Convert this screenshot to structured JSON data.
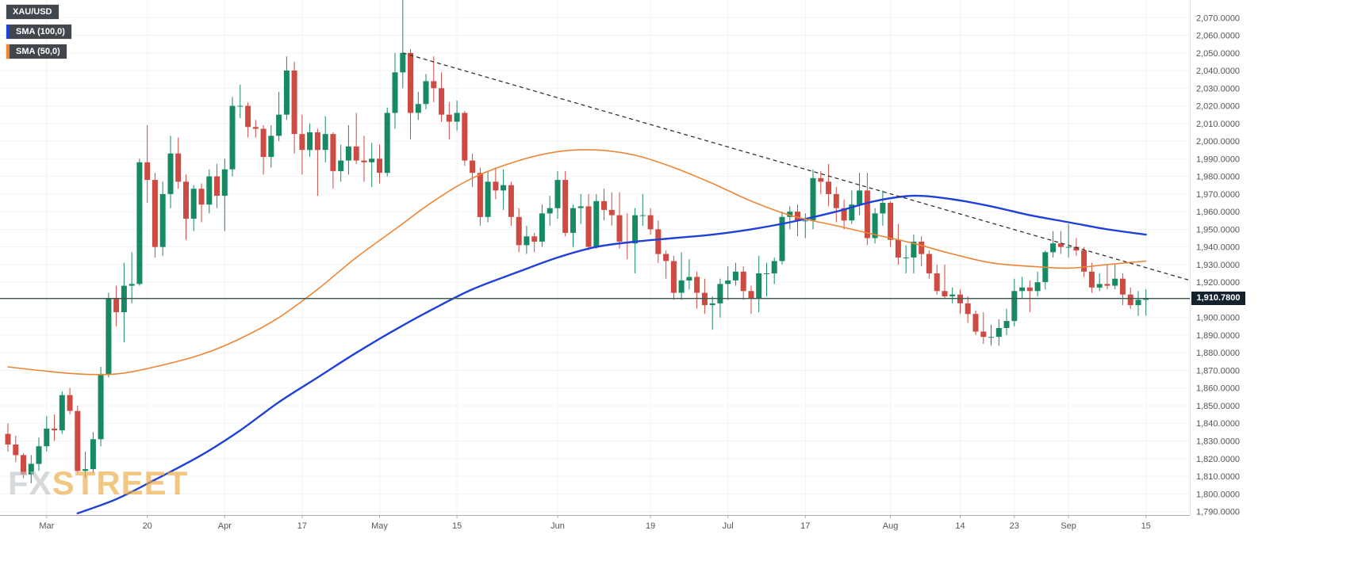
{
  "legend": {
    "symbol_label": "XAU/USD",
    "indicators": [
      {
        "label": "SMA (100,0)",
        "color": "#2041d9"
      },
      {
        "label": "SMA (50,0)",
        "color": "#ee8535"
      }
    ]
  },
  "watermark": {
    "part1": "FX",
    "part2": "STREET"
  },
  "last_price": {
    "value": 1910.78,
    "label": "1,910.7800"
  },
  "price_axis": {
    "top_value": 2070,
    "step": 10,
    "labels": [
      "2,070.0000",
      "2,060.0000",
      "2,050.0000",
      "2,040.0000",
      "2,030.0000",
      "2,020.0000",
      "2,010.0000",
      "2,000.0000",
      "1,990.0000",
      "1,980.0000",
      "1,970.0000",
      "1,960.0000",
      "1,950.0000",
      "1,940.0000",
      "1,930.0000",
      "1,920.0000",
      "1,910.0000",
      "1,900.0000",
      "1,890.0000",
      "1,880.0000",
      "1,870.0000",
      "1,860.0000",
      "1,850.0000",
      "1,840.0000",
      "1,830.0000",
      "1,820.0000",
      "1,810.0000",
      "1,800.0000",
      "1,790.0000"
    ]
  },
  "time_axis": {
    "labels": [
      {
        "text": "Mar",
        "i": 5
      },
      {
        "text": "20",
        "i": 18
      },
      {
        "text": "Apr",
        "i": 28
      },
      {
        "text": "17",
        "i": 38
      },
      {
        "text": "May",
        "i": 48
      },
      {
        "text": "15",
        "i": 58
      },
      {
        "text": "Jun",
        "i": 71
      },
      {
        "text": "19",
        "i": 83
      },
      {
        "text": "Jul",
        "i": 93
      },
      {
        "text": "17",
        "i": 103
      },
      {
        "text": "Aug",
        "i": 114
      },
      {
        "text": "14",
        "i": 123
      },
      {
        "text": "23",
        "i": 130
      },
      {
        "text": "Sep",
        "i": 137
      },
      {
        "text": "15",
        "i": 147
      }
    ]
  },
  "chart_data": {
    "type": "candlestick",
    "symbol": "XAU/USD",
    "ylim": [
      1788,
      2080
    ],
    "colors": {
      "up": "#178a63",
      "down": "#cd4b42",
      "grid": "#f3f3f3",
      "axis_text": "#555555",
      "axis_line": "#aaaaaa",
      "trendline": "#333333",
      "last_price_line": "#3a564e",
      "last_price_box": "#15212d",
      "badge_bg": "#41474d"
    },
    "candles": [
      [
        1834,
        1840,
        1824,
        1828
      ],
      [
        1828,
        1833,
        1818,
        1822
      ],
      [
        1822,
        1823,
        1809,
        1811
      ],
      [
        1811,
        1822,
        1806,
        1817
      ],
      [
        1817,
        1832,
        1813,
        1827
      ],
      [
        1827,
        1844,
        1824,
        1837
      ],
      [
        1837,
        1845,
        1830,
        1836
      ],
      [
        1836,
        1858,
        1834,
        1856
      ],
      [
        1856,
        1860,
        1845,
        1847
      ],
      [
        1847,
        1850,
        1812,
        1813
      ],
      [
        1813,
        1824,
        1809,
        1814
      ],
      [
        1814,
        1835,
        1812,
        1831
      ],
      [
        1831,
        1872,
        1827,
        1868
      ],
      [
        1868,
        1914,
        1866,
        1911
      ],
      [
        1911,
        1918,
        1895,
        1903
      ],
      [
        1903,
        1931,
        1886,
        1918
      ],
      [
        1918,
        1937,
        1908,
        1919
      ],
      [
        1919,
        1990,
        1918,
        1988
      ],
      [
        1988,
        2009,
        1965,
        1978
      ],
      [
        1978,
        1982,
        1934,
        1940
      ],
      [
        1940,
        1977,
        1935,
        1970
      ],
      [
        1970,
        2003,
        1962,
        1993
      ],
      [
        1993,
        2002,
        1973,
        1977
      ],
      [
        1977,
        1981,
        1944,
        1956
      ],
      [
        1956,
        1975,
        1949,
        1973
      ],
      [
        1973,
        1976,
        1954,
        1964
      ],
      [
        1964,
        1984,
        1959,
        1980
      ],
      [
        1980,
        1987,
        1962,
        1969
      ],
      [
        1969,
        1990,
        1949,
        1984
      ],
      [
        1984,
        2025,
        1980,
        2020
      ],
      [
        2020,
        2032,
        2013,
        2020
      ],
      [
        2020,
        2022,
        2002,
        2008
      ],
      [
        2008,
        2012,
        2002,
        2007
      ],
      [
        2007,
        2009,
        1981,
        1991
      ],
      [
        1991,
        2009,
        1985,
        2003
      ],
      [
        2003,
        2028,
        2000,
        2015
      ],
      [
        2015,
        2048,
        2012,
        2040
      ],
      [
        2040,
        2045,
        1993,
        2004
      ],
      [
        2004,
        2015,
        1981,
        1995
      ],
      [
        1995,
        2010,
        1991,
        2005
      ],
      [
        2005,
        2007,
        1969,
        1995
      ],
      [
        1995,
        2014,
        1988,
        2004
      ],
      [
        2004,
        2005,
        1973,
        1983
      ],
      [
        1983,
        1998,
        1977,
        1989
      ],
      [
        1989,
        2009,
        1981,
        1997
      ],
      [
        1997,
        2016,
        1987,
        1989
      ],
      [
        1989,
        2003,
        1977,
        1988
      ],
      [
        1988,
        1999,
        1974,
        1990
      ],
      [
        1990,
        1998,
        1976,
        1982
      ],
      [
        1982,
        2019,
        1980,
        2016
      ],
      [
        2016,
        2050,
        2007,
        2039
      ],
      [
        2039,
        2081,
        2030,
        2050
      ],
      [
        2050,
        2052,
        2001,
        2016
      ],
      [
        2016,
        2028,
        2012,
        2021
      ],
      [
        2021,
        2038,
        2018,
        2034
      ],
      [
        2034,
        2048,
        2022,
        2030
      ],
      [
        2030,
        2039,
        2011,
        2015
      ],
      [
        2015,
        2022,
        2001,
        2011
      ],
      [
        2011,
        2023,
        2006,
        2016
      ],
      [
        2016,
        2017,
        1986,
        1989
      ],
      [
        1989,
        1993,
        1974,
        1982
      ],
      [
        1982,
        1985,
        1952,
        1957
      ],
      [
        1957,
        1983,
        1954,
        1977
      ],
      [
        1977,
        1985,
        1967,
        1972
      ],
      [
        1972,
        1984,
        1961,
        1975
      ],
      [
        1975,
        1977,
        1952,
        1957
      ],
      [
        1957,
        1962,
        1937,
        1941
      ],
      [
        1941,
        1952,
        1936,
        1946
      ],
      [
        1946,
        1948,
        1937,
        1943
      ],
      [
        1943,
        1964,
        1940,
        1959
      ],
      [
        1959,
        1969,
        1952,
        1962
      ],
      [
        1962,
        1983,
        1956,
        1978
      ],
      [
        1978,
        1983,
        1946,
        1948
      ],
      [
        1948,
        1964,
        1940,
        1962
      ],
      [
        1962,
        1970,
        1953,
        1963
      ],
      [
        1963,
        1970,
        1938,
        1940
      ],
      [
        1940,
        1970,
        1939,
        1966
      ],
      [
        1966,
        1973,
        1955,
        1961
      ],
      [
        1961,
        1971,
        1952,
        1958
      ],
      [
        1958,
        1971,
        1939,
        1943
      ],
      [
        1943,
        1959,
        1933,
        1942
      ],
      [
        1942,
        1962,
        1925,
        1958
      ],
      [
        1958,
        1970,
        1952,
        1958
      ],
      [
        1958,
        1962,
        1947,
        1950
      ],
      [
        1950,
        1955,
        1931,
        1936
      ],
      [
        1936,
        1938,
        1922,
        1932
      ],
      [
        1932,
        1935,
        1910,
        1914
      ],
      [
        1914,
        1937,
        1910,
        1921
      ],
      [
        1921,
        1933,
        1916,
        1923
      ],
      [
        1923,
        1926,
        1905,
        1914
      ],
      [
        1914,
        1922,
        1902,
        1907
      ],
      [
        1907,
        1912,
        1893,
        1908
      ],
      [
        1908,
        1922,
        1900,
        1919
      ],
      [
        1919,
        1929,
        1910,
        1921
      ],
      [
        1921,
        1931,
        1918,
        1926
      ],
      [
        1926,
        1929,
        1910,
        1915
      ],
      [
        1915,
        1918,
        1902,
        1911
      ],
      [
        1911,
        1935,
        1903,
        1925
      ],
      [
        1925,
        1931,
        1912,
        1925
      ],
      [
        1925,
        1934,
        1919,
        1932
      ],
      [
        1932,
        1960,
        1930,
        1957
      ],
      [
        1957,
        1963,
        1950,
        1960
      ],
      [
        1960,
        1964,
        1946,
        1955
      ],
      [
        1955,
        1959,
        1945,
        1955
      ],
      [
        1955,
        1984,
        1950,
        1979
      ],
      [
        1979,
        1983,
        1970,
        1977
      ],
      [
        1977,
        1987,
        1963,
        1970
      ],
      [
        1970,
        1974,
        1954,
        1962
      ],
      [
        1962,
        1967,
        1950,
        1955
      ],
      [
        1955,
        1972,
        1953,
        1964
      ],
      [
        1964,
        1982,
        1958,
        1972
      ],
      [
        1972,
        1982,
        1941,
        1945
      ],
      [
        1945,
        1962,
        1942,
        1959
      ],
      [
        1959,
        1972,
        1952,
        1965
      ],
      [
        1965,
        1966,
        1940,
        1944
      ],
      [
        1944,
        1953,
        1930,
        1934
      ],
      [
        1934,
        1941,
        1925,
        1934
      ],
      [
        1934,
        1947,
        1925,
        1943
      ],
      [
        1943,
        1946,
        1929,
        1936
      ],
      [
        1936,
        1938,
        1922,
        1925
      ],
      [
        1925,
        1930,
        1913,
        1915
      ],
      [
        1915,
        1930,
        1911,
        1912
      ],
      [
        1912,
        1917,
        1908,
        1913
      ],
      [
        1913,
        1916,
        1902,
        1908
      ],
      [
        1908,
        1912,
        1897,
        1902
      ],
      [
        1902,
        1904,
        1890,
        1892
      ],
      [
        1892,
        1903,
        1885,
        1889
      ],
      [
        1889,
        1896,
        1884,
        1889
      ],
      [
        1889,
        1899,
        1884,
        1894
      ],
      [
        1894,
        1905,
        1890,
        1898
      ],
      [
        1898,
        1922,
        1895,
        1915
      ],
      [
        1915,
        1923,
        1911,
        1917
      ],
      [
        1917,
        1921,
        1903,
        1915
      ],
      [
        1915,
        1926,
        1912,
        1920
      ],
      [
        1920,
        1938,
        1916,
        1937
      ],
      [
        1937,
        1949,
        1934,
        1942
      ],
      [
        1942,
        1949,
        1936,
        1940
      ],
      [
        1940,
        1953,
        1934,
        1940
      ],
      [
        1940,
        1945,
        1935,
        1938
      ],
      [
        1938,
        1940,
        1923,
        1926
      ],
      [
        1926,
        1931,
        1914,
        1917
      ],
      [
        1917,
        1925,
        1915,
        1919
      ],
      [
        1919,
        1930,
        1916,
        1918
      ],
      [
        1918,
        1930,
        1916,
        1922
      ],
      [
        1922,
        1925,
        1907,
        1913
      ],
      [
        1913,
        1917,
        1905,
        1907
      ],
      [
        1907,
        1915,
        1901,
        1910
      ],
      [
        1910,
        1916,
        1901,
        1910.78
      ]
    ],
    "overlays": [
      {
        "name": "SMA (100,0)",
        "type": "sma",
        "color": "#2041d9",
        "points": [
          [
            9,
            1789
          ],
          [
            14,
            1797
          ],
          [
            19,
            1808
          ],
          [
            25,
            1822
          ],
          [
            30,
            1836
          ],
          [
            35,
            1852
          ],
          [
            40,
            1866
          ],
          [
            45,
            1880
          ],
          [
            50,
            1893
          ],
          [
            55,
            1905
          ],
          [
            60,
            1916
          ],
          [
            66,
            1926
          ],
          [
            71,
            1934
          ],
          [
            76,
            1940
          ],
          [
            81,
            1943
          ],
          [
            86,
            1945
          ],
          [
            91,
            1947
          ],
          [
            96,
            1950
          ],
          [
            101,
            1954
          ],
          [
            107,
            1960
          ],
          [
            112,
            1966
          ],
          [
            117,
            1969
          ],
          [
            122,
            1967
          ],
          [
            127,
            1963
          ],
          [
            132,
            1958
          ],
          [
            137,
            1954
          ],
          [
            142,
            1950
          ],
          [
            147,
            1947
          ]
        ]
      },
      {
        "name": "SMA (50,0)",
        "type": "sma",
        "color": "#ee8535",
        "points": [
          [
            0,
            1872
          ],
          [
            4,
            1870
          ],
          [
            9,
            1868
          ],
          [
            14,
            1868
          ],
          [
            19,
            1872
          ],
          [
            25,
            1879
          ],
          [
            30,
            1888
          ],
          [
            35,
            1900
          ],
          [
            40,
            1916
          ],
          [
            45,
            1934
          ],
          [
            50,
            1950
          ],
          [
            55,
            1966
          ],
          [
            60,
            1979
          ],
          [
            66,
            1989
          ],
          [
            71,
            1994
          ],
          [
            76,
            1995
          ],
          [
            81,
            1992
          ],
          [
            86,
            1985
          ],
          [
            91,
            1976
          ],
          [
            96,
            1966
          ],
          [
            101,
            1958
          ],
          [
            107,
            1952
          ],
          [
            112,
            1947
          ],
          [
            117,
            1942
          ],
          [
            122,
            1936
          ],
          [
            127,
            1931
          ],
          [
            132,
            1929
          ],
          [
            137,
            1928
          ],
          [
            142,
            1930
          ],
          [
            147,
            1932
          ]
        ]
      },
      {
        "name": "descending-trendline",
        "type": "dashed-line",
        "color": "#333333",
        "points": [
          [
            51,
            2050
          ],
          [
            152.7,
            1921
          ]
        ]
      },
      {
        "name": "last-price-line",
        "type": "hline",
        "price": 1910.78,
        "color": "#3a564e"
      }
    ]
  }
}
